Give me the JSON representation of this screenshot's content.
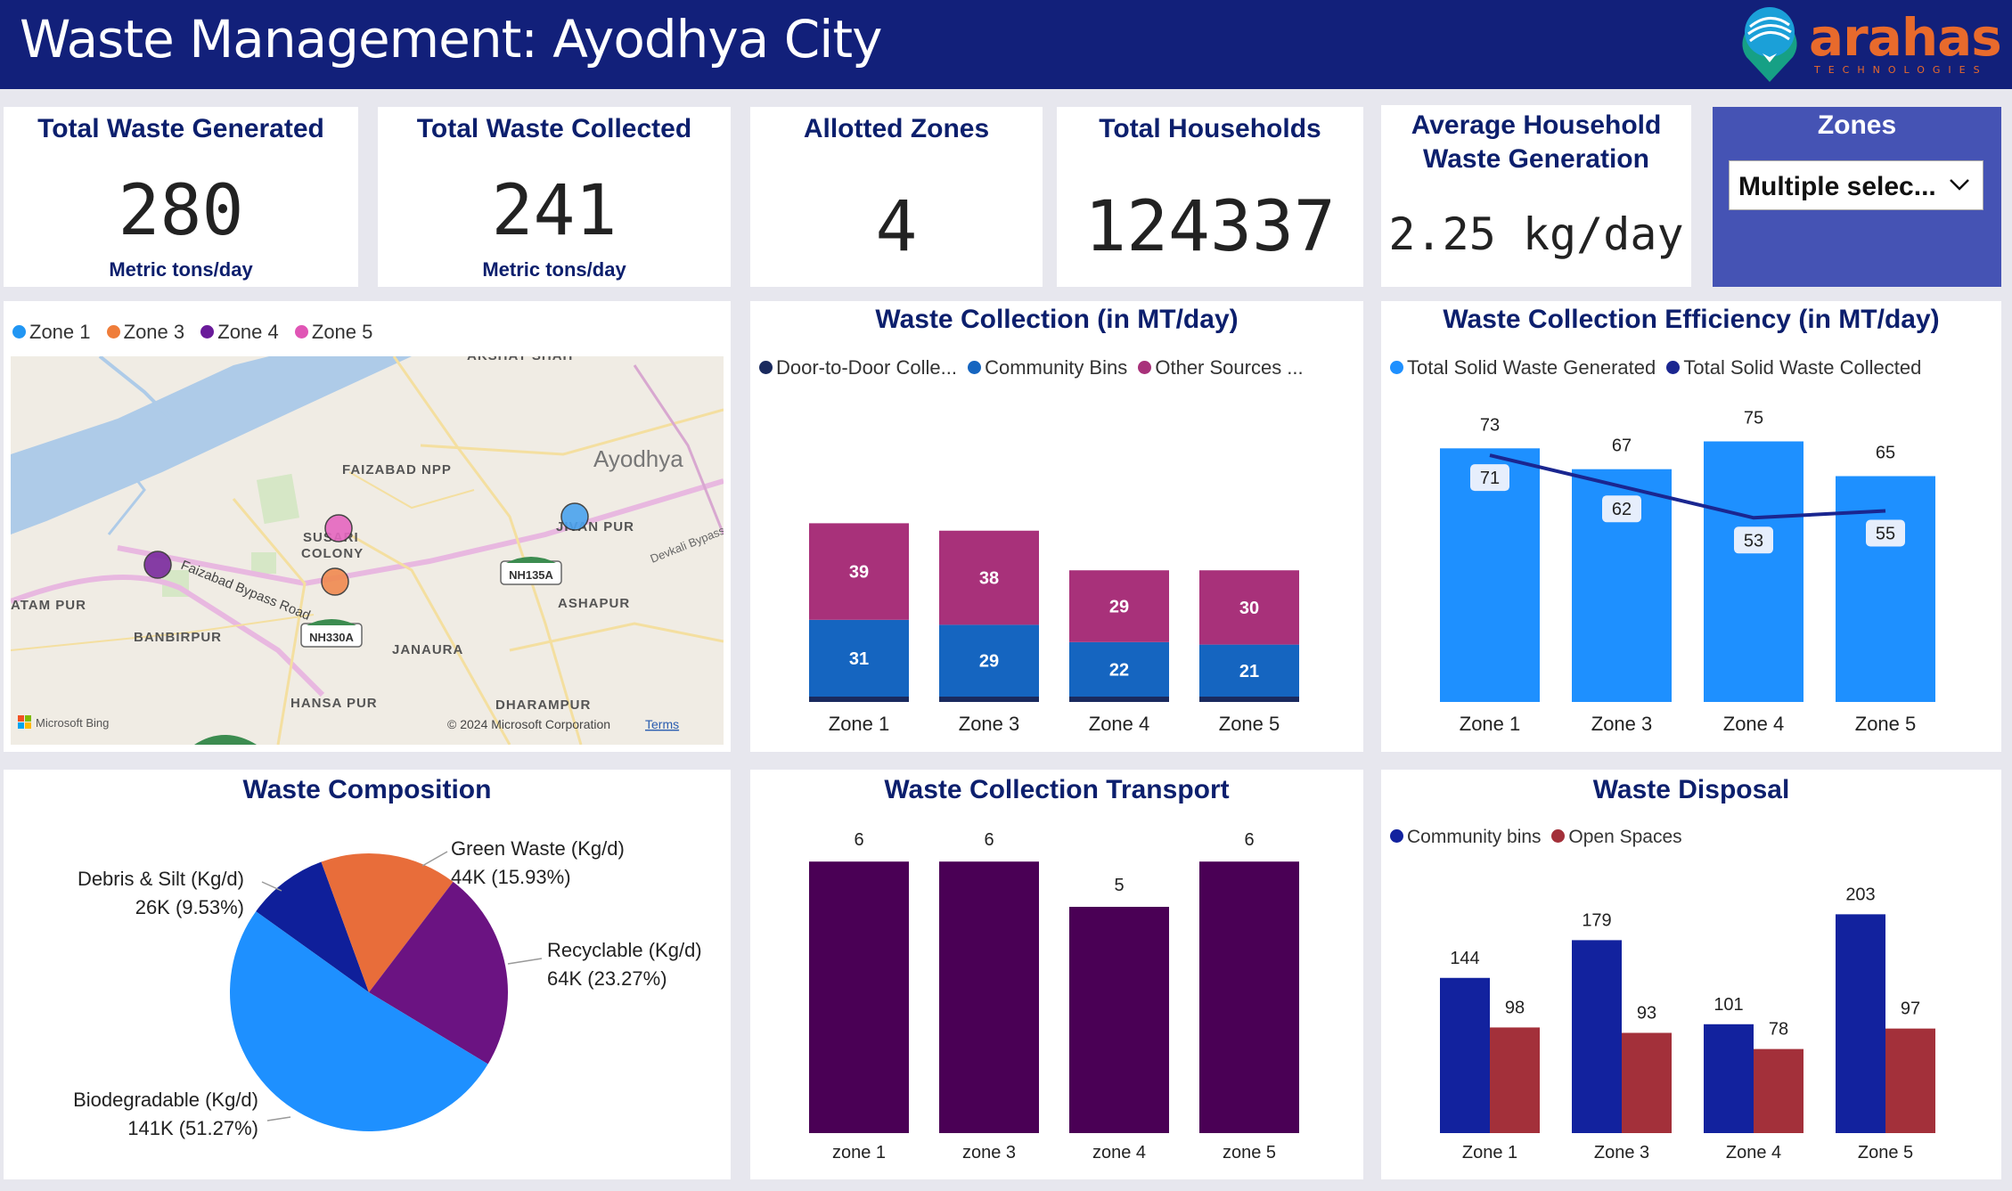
{
  "header": {
    "title": "Waste Management: Ayodhya City",
    "logo_text": "arahas",
    "logo_subtext": "TECHNOLOGIES"
  },
  "kpis": {
    "total_generated": {
      "title": "Total Waste Generated",
      "value": "280",
      "unit": "Metric tons/day"
    },
    "total_collected": {
      "title": "Total Waste Collected",
      "value": "241",
      "unit": "Metric tons/day"
    },
    "allotted_zones": {
      "title": "Allotted Zones",
      "value": "4"
    },
    "total_households": {
      "title": "Total Households",
      "value": "124337"
    },
    "avg_household": {
      "title_line1": "Average Household",
      "title_line2": "Waste Generation",
      "value": "2.25 kg/day"
    }
  },
  "slicer": {
    "title": "Zones",
    "value": "Multiple selec..."
  },
  "map": {
    "legend": [
      {
        "label": "Zone 1",
        "color": "#2196f3"
      },
      {
        "label": "Zone 3",
        "color": "#ef7d3a"
      },
      {
        "label": "Zone 4",
        "color": "#6a1b9a"
      },
      {
        "label": "Zone 5",
        "color": "#e055b5"
      }
    ],
    "place_labels": {
      "ayodhya": "Ayodhya",
      "faizabad_npp": "FAIZABAD NPP",
      "susari": "SUSARI",
      "colony": "COLONY",
      "jivan_pur": "JIVAN PUR",
      "atam_pur": "ATAM PUR",
      "banbirpur": "BANBIRPUR",
      "ashapur": "ASHAPUR",
      "janaura": "JANAURA",
      "hansa_pur": "HANSA PUR",
      "dharampur": "DHARAMPUR",
      "akshay": "AKSHAY SHAH",
      "bypass_road": "Faizabad Bypass Road",
      "devkali": "Devkali Bypass",
      "nh135a": "NH135A",
      "nh330a": "NH330A"
    },
    "attribution": "Microsoft Bing",
    "copyright": "© 2024 Microsoft Corporation",
    "terms": "Terms"
  },
  "colors": {
    "door_to_door": "#1a2a5e",
    "community_bins": "#1565c0",
    "other_sources": "#a8317a",
    "generated": "#1e90ff",
    "collected_line": "#1a2690",
    "transport": "#4a0055",
    "disposal_bins": "#12229e",
    "disposal_open": "#a3303a"
  },
  "chart_data": [
    {
      "type": "bar",
      "title": "Waste Collection (in MT/day)",
      "categories": [
        "Zone 1",
        "Zone 3",
        "Zone 4",
        "Zone 5"
      ],
      "stacked": true,
      "series": [
        {
          "name": "Door-to-Door Colle...",
          "values": [
            1,
            1,
            1,
            1
          ]
        },
        {
          "name": "Community Bins",
          "values": [
            31,
            29,
            22,
            21
          ]
        },
        {
          "name": "Other Sources ...",
          "values": [
            39,
            38,
            29,
            30
          ]
        }
      ]
    },
    {
      "type": "bar",
      "title": "Waste Collection Efficiency (in MT/day)",
      "categories": [
        "Zone 1",
        "Zone 3",
        "Zone 4",
        "Zone 5"
      ],
      "series": [
        {
          "name": "Total Solid Waste Generated",
          "values": [
            73,
            67,
            75,
            65
          ]
        },
        {
          "name": "Total Solid Waste Collected",
          "values": [
            71,
            62,
            53,
            55
          ]
        }
      ]
    },
    {
      "type": "pie",
      "title": "Waste Composition",
      "slices": [
        {
          "name": "Debris & Silt (Kg/d)",
          "value_label": "26K (9.53%)",
          "value": 26,
          "percent": 9.53,
          "color": "#0f1f9a"
        },
        {
          "name": "Green Waste (Kg/d)",
          "value_label": "44K (15.93%)",
          "value": 44,
          "percent": 15.93,
          "color": "#e86d3a"
        },
        {
          "name": "Recyclable (Kg/d)",
          "value_label": "64K (23.27%)",
          "value": 64,
          "percent": 23.27,
          "color": "#6b1382"
        },
        {
          "name": "Biodegradable (Kg/d)",
          "value_label": "141K (51.27%)",
          "value": 141,
          "percent": 51.27,
          "color": "#1e90ff"
        }
      ]
    },
    {
      "type": "bar",
      "title": "Waste Collection Transport",
      "categories": [
        "zone 1",
        "zone 3",
        "zone 4",
        "zone 5"
      ],
      "series": [
        {
          "values": [
            6,
            6,
            5,
            6
          ]
        }
      ]
    },
    {
      "type": "bar",
      "title": "Waste Disposal",
      "categories": [
        "Zone 1",
        "Zone 3",
        "Zone 4",
        "Zone 5"
      ],
      "series": [
        {
          "name": "Community bins",
          "values": [
            144,
            179,
            101,
            203
          ]
        },
        {
          "name": "Open Spaces",
          "values": [
            98,
            93,
            78,
            97
          ]
        }
      ]
    }
  ]
}
